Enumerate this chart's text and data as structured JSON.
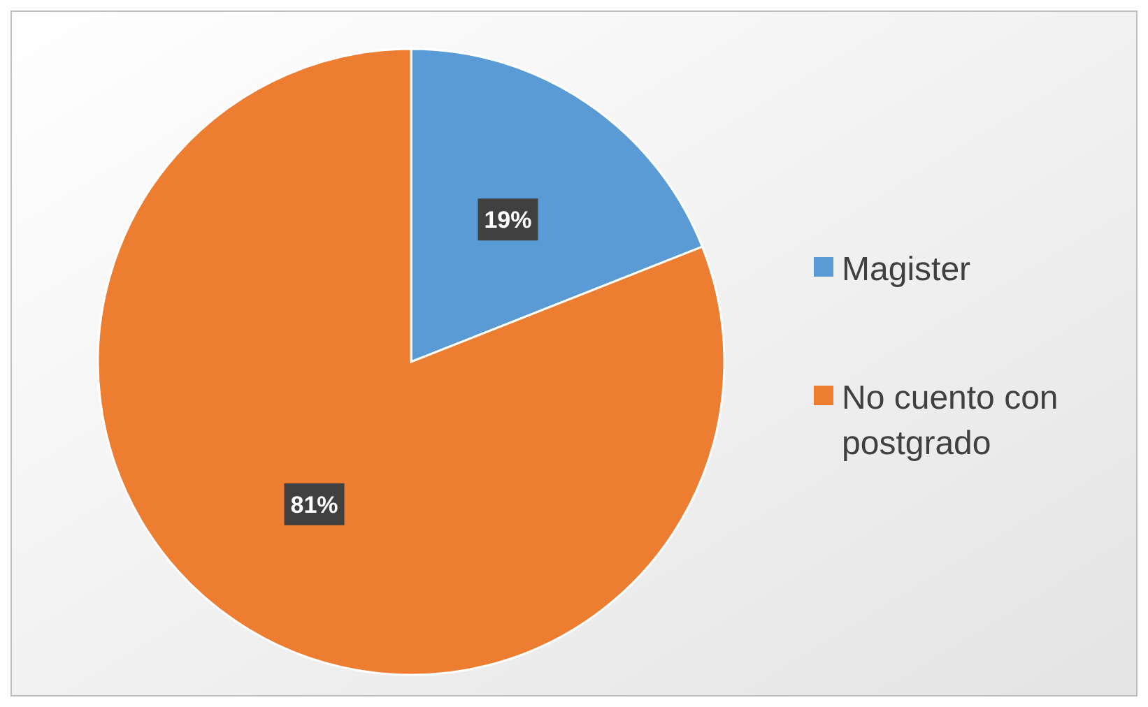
{
  "chart_data": {
    "type": "pie",
    "categories": [
      "Magister",
      "No cuento con postgrado"
    ],
    "values": [
      19,
      81
    ],
    "colors": [
      "#5b9bd5",
      "#ed7d31"
    ],
    "value_labels": [
      "19%",
      "81%"
    ],
    "legend": "right"
  }
}
